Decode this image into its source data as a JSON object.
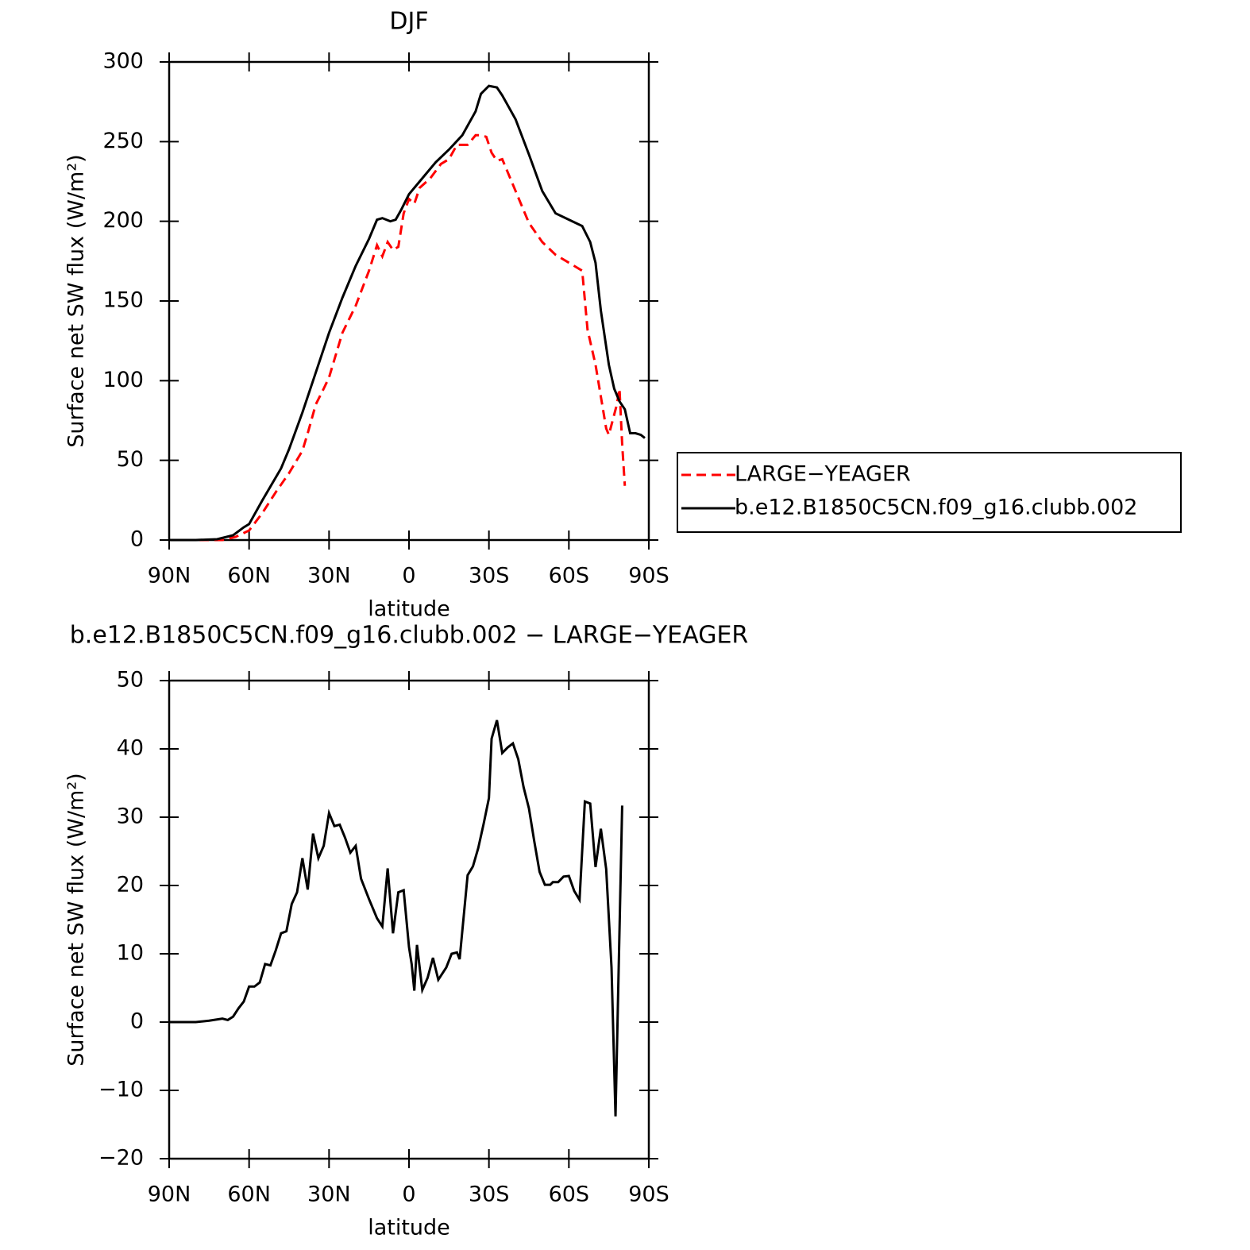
{
  "chart_data": [
    {
      "type": "line",
      "title": "DJF",
      "xlabel": "latitude",
      "ylabel": "Surface net SW flux (W/m²)",
      "xlim": [
        90,
        -90
      ],
      "xticks": [
        {
          "value": 90,
          "label": "90N"
        },
        {
          "value": 60,
          "label": "60N"
        },
        {
          "value": 30,
          "label": "30N"
        },
        0,
        {
          "value": -30,
          "label": "30S"
        },
        {
          "value": -60,
          "label": "60S"
        },
        {
          "value": -90,
          "label": "90S"
        }
      ],
      "ylim": [
        0,
        300
      ],
      "yticks": [
        0,
        50,
        100,
        150,
        200,
        250,
        300
      ],
      "legend": "right",
      "series": [
        {
          "name": "LARGE−YEAGER",
          "color": "#ff0000",
          "dash": true,
          "x": [
            90,
            80,
            70,
            65,
            60,
            55,
            50,
            45,
            40,
            38,
            35,
            32,
            30,
            25,
            20,
            15,
            12,
            10,
            8,
            6,
            4,
            2,
            0,
            -2,
            -4,
            -8,
            -12,
            -15,
            -18,
            -20,
            -22,
            -25,
            -27,
            -29,
            -31,
            -33,
            -35,
            -40,
            -45,
            -50,
            -55,
            -60,
            -65,
            -67,
            -70,
            -72,
            -74,
            -75,
            -78,
            -79,
            -80,
            -81
          ],
          "values": [
            0,
            0,
            0,
            2,
            6,
            17,
            30,
            42,
            56,
            67,
            85,
            95,
            102,
            130,
            147,
            169,
            185,
            178,
            187,
            182,
            184,
            205,
            214,
            211,
            221,
            227,
            236,
            239,
            248,
            248,
            248,
            254,
            254,
            253,
            243,
            238,
            239,
            219,
            199,
            187,
            179,
            174,
            169,
            132,
            110,
            90,
            70,
            66,
            85,
            95,
            60,
            34
          ]
        },
        {
          "name": "b.e12.B1850C5CN.f09_g16.clubb.002",
          "color": "#000000",
          "dash": false,
          "x": [
            90,
            80,
            72,
            66,
            62,
            60,
            55,
            48,
            45,
            40,
            35,
            30,
            25,
            20,
            15,
            12,
            10,
            7,
            5,
            3,
            0,
            -3,
            -5,
            -10,
            -15,
            -20,
            -25,
            -27,
            -30,
            -33,
            -35,
            -40,
            -45,
            -50,
            -55,
            -60,
            -65,
            -68,
            -70,
            -72,
            -75,
            -77,
            -79,
            -81,
            -83,
            -85,
            -87,
            -88.5
          ],
          "values": [
            0,
            0,
            0.5,
            3,
            8,
            10,
            25,
            45,
            57,
            80,
            105,
            130,
            152,
            172,
            189,
            201,
            202,
            200,
            201,
            207,
            217,
            223,
            227,
            237,
            245,
            254,
            269,
            280,
            285,
            284,
            279,
            264,
            242,
            219,
            205,
            201,
            197,
            187,
            174,
            144,
            110,
            95,
            87,
            82,
            67,
            67,
            66,
            64
          ]
        }
      ]
    },
    {
      "type": "line",
      "title": "b.e12.B1850C5CN.f09_g16.clubb.002 − LARGE−YEAGER",
      "xlabel": "latitude",
      "ylabel": "Surface net SW flux (W/m²)",
      "xlim": [
        90,
        -90
      ],
      "xticks": [
        {
          "value": 90,
          "label": "90N"
        },
        {
          "value": 60,
          "label": "60N"
        },
        {
          "value": 30,
          "label": "30N"
        },
        0,
        {
          "value": -30,
          "label": "30S"
        },
        {
          "value": -60,
          "label": "60S"
        },
        {
          "value": -90,
          "label": "90S"
        }
      ],
      "ylim": [
        -20,
        50
      ],
      "yticks": [
        {
          "value": -20,
          "label": "−20"
        },
        {
          "value": -10,
          "label": "−10"
        },
        0,
        10,
        20,
        30,
        40,
        50
      ],
      "series": [
        {
          "color": "#000000",
          "dash": false,
          "x": [
            90,
            80,
            75,
            70,
            68,
            66,
            64,
            62,
            60,
            58,
            56,
            54,
            52,
            50,
            48,
            46,
            44,
            42,
            40,
            38,
            36,
            34,
            32,
            30,
            28,
            26,
            24,
            22,
            20,
            18,
            15,
            12,
            10,
            8,
            6,
            4,
            2,
            0,
            -1,
            -2,
            -3,
            -5,
            -7,
            -9,
            -11,
            -14,
            -16,
            -18,
            -19,
            -22,
            -24,
            -26,
            -28,
            -30,
            -31,
            -33,
            -35,
            -37,
            -39,
            -41,
            -43,
            -45,
            -47,
            -49,
            -51,
            -53,
            -54,
            -56,
            -58,
            -60,
            -62,
            -64,
            -66,
            -68,
            -70,
            -72,
            -74,
            -76,
            -77.5,
            -80
          ],
          "values": [
            0,
            0,
            0.2,
            0.5,
            0.3,
            0.8,
            2,
            3,
            5.2,
            5.2,
            5.8,
            8.5,
            8.3,
            10.5,
            13,
            13.3,
            17.3,
            19,
            24,
            19.4,
            27.6,
            24,
            25.8,
            30.6,
            28.7,
            28.9,
            27,
            24.8,
            25.8,
            21,
            18,
            15.2,
            14,
            22.5,
            13,
            19,
            19.3,
            11,
            8.5,
            4.6,
            11.3,
            4.7,
            6.5,
            9.4,
            6.2,
            8,
            10,
            10.2,
            9.2,
            21.5,
            22.8,
            25.5,
            29,
            32.8,
            41.5,
            44.2,
            39.4,
            40.2,
            40.8,
            38.5,
            34.4,
            31.3,
            26.5,
            22,
            20.1,
            20.1,
            20.5,
            20.5,
            21.3,
            21.4,
            19.2,
            17.9,
            32.3,
            32,
            22.7,
            28.3,
            22.4,
            8,
            -13.8,
            31.7
          ]
        }
      ]
    }
  ]
}
